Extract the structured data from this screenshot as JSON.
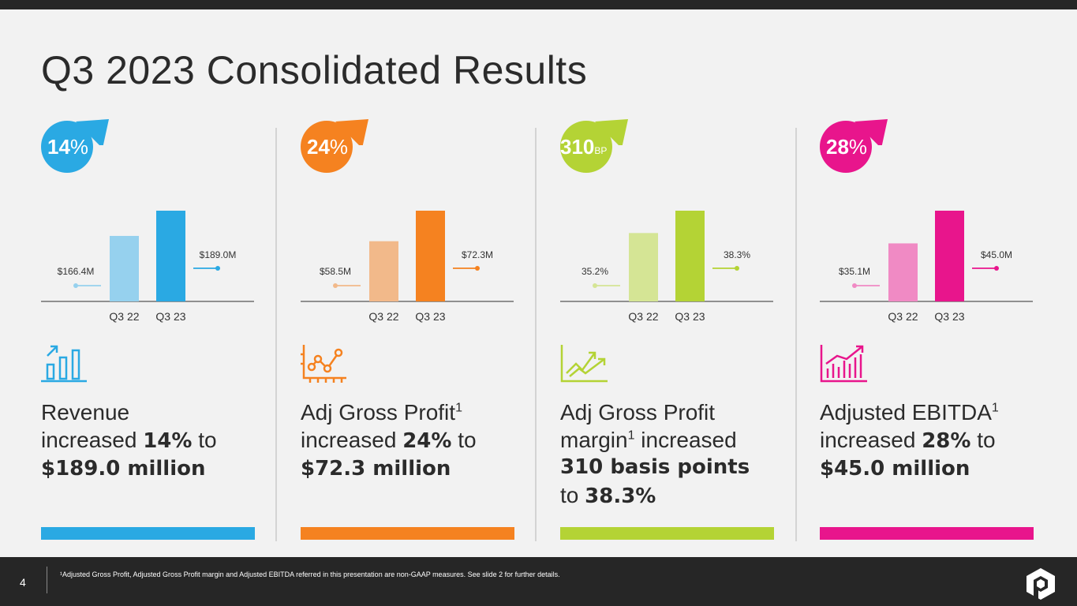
{
  "title": "Q3 2023 Consolidated Results",
  "colors": {
    "blue": "#2aa9e3",
    "orange": "#f58220",
    "green": "#b4d335",
    "pink": "#e8158c"
  },
  "panels": [
    {
      "badge_num": "14",
      "badge_unit": "%",
      "icon": "bar-chart-growth-icon",
      "chart_data": {
        "type": "bar",
        "categories": [
          "Q3 22",
          "Q3 23"
        ],
        "values": [
          166.4,
          189.0
        ],
        "value_labels": [
          "$166.4M",
          "$189.0M"
        ]
      },
      "desc": {
        "l1": "Revenue",
        "l2a": "increased ",
        "l2b": "14%",
        "l2c": " to",
        "l3": "$189.0 million"
      }
    },
    {
      "badge_num": "24",
      "badge_unit": "%",
      "icon": "line-chart-icon",
      "chart_data": {
        "type": "bar",
        "categories": [
          "Q3 22",
          "Q3 23"
        ],
        "values": [
          58.5,
          72.3
        ],
        "value_labels": [
          "$58.5M",
          "$72.3M"
        ]
      },
      "desc": {
        "l1": "Adj Gross Profit",
        "sup": "1",
        "l2a": "increased ",
        "l2b": "24%",
        "l2c": " to",
        "l3": "$72.3 million"
      }
    },
    {
      "badge_num": "310",
      "badge_unit": "BP",
      "icon": "trend-arrows-icon",
      "chart_data": {
        "type": "bar",
        "categories": [
          "Q3 22",
          "Q3 23"
        ],
        "values": [
          35.2,
          38.3
        ],
        "value_labels": [
          "35.2%",
          "38.3%"
        ]
      },
      "desc": {
        "l1": "Adj Gross Profit",
        "l2a": "margin",
        "sup": "1",
        "l2c": " increased",
        "l3": "310 basis points",
        "l4a": "to ",
        "l4b": "38.3%"
      }
    },
    {
      "badge_num": "28",
      "badge_unit": "%",
      "icon": "histogram-growth-icon",
      "chart_data": {
        "type": "bar",
        "categories": [
          "Q3 22",
          "Q3 23"
        ],
        "values": [
          35.1,
          45.0
        ],
        "value_labels": [
          "$35.1M",
          "$45.0M"
        ]
      },
      "desc": {
        "l1": "Adjusted EBITDA",
        "sup": "1",
        "l2a": "increased ",
        "l2b": "28%",
        "l2c": " to",
        "l3": "$45.0 million"
      }
    }
  ],
  "footer": {
    "page_number": "4",
    "footnote": "¹Adjusted Gross Profit, Adjusted Gross Profit margin and Adjusted EBITDA referred in this presentation are non-GAAP measures. See slide 2 for further details."
  }
}
